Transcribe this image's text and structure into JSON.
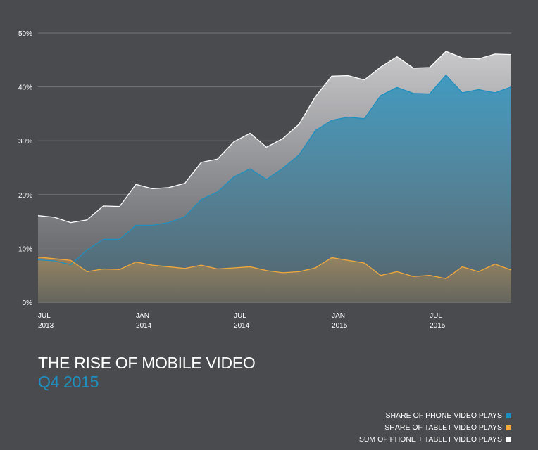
{
  "chart_data": {
    "type": "area",
    "title": "THE RISE OF MOBILE VIDEO",
    "subtitle": "Q4 2015",
    "ylim": [
      0,
      50
    ],
    "y_ticks": [
      "0%",
      "10%",
      "20%",
      "30%",
      "40%",
      "50%"
    ],
    "y_tick_values": [
      0,
      10,
      20,
      30,
      40,
      50
    ],
    "x_ticks": [
      {
        "month": "JUL",
        "year": "2013",
        "index": 0
      },
      {
        "month": "JAN",
        "year": "2014",
        "index": 6
      },
      {
        "month": "JUL",
        "year": "2014",
        "index": 12
      },
      {
        "month": "JAN",
        "year": "2015",
        "index": 18
      },
      {
        "month": "JUL",
        "year": "2015",
        "index": 24
      }
    ],
    "grid": true,
    "legend_placement": "bottom-right",
    "series": [
      {
        "name": "SUM OF PHONE + TABLET VIDEO PLAYS",
        "color": "#ffffff",
        "values": [
          16.1,
          15.8,
          14.8,
          15.3,
          17.9,
          17.8,
          21.9,
          21.1,
          21.3,
          22.1,
          26.0,
          26.6,
          29.8,
          31.4,
          28.8,
          30.4,
          33.1,
          38.2,
          42.0,
          42.1,
          41.3,
          43.7,
          45.6,
          43.5,
          43.6,
          46.6,
          45.4,
          45.2,
          46.1,
          46.0
        ]
      },
      {
        "name": "SHARE OF PHONE VIDEO PLAYS",
        "color": "#1e8fbf",
        "values": [
          7.9,
          7.7,
          7.0,
          9.7,
          11.7,
          11.7,
          14.3,
          14.3,
          14.8,
          15.9,
          19.1,
          20.5,
          23.3,
          24.8,
          22.8,
          24.9,
          27.4,
          31.9,
          33.8,
          34.4,
          34.1,
          38.4,
          39.9,
          38.8,
          38.7,
          42.2,
          38.9,
          39.5,
          38.9,
          40.0
        ]
      },
      {
        "name": "SHARE OF TABLET VIDEO PLAYS",
        "color": "#f2a93b",
        "values": [
          8.4,
          8.1,
          7.8,
          5.7,
          6.2,
          6.1,
          7.5,
          6.9,
          6.6,
          6.3,
          6.9,
          6.2,
          6.4,
          6.6,
          5.9,
          5.5,
          5.7,
          6.4,
          8.3,
          7.8,
          7.3,
          5.0,
          5.7,
          4.8,
          5.0,
          4.4,
          6.6,
          5.7,
          7.1,
          6.0
        ]
      }
    ]
  },
  "legend": [
    {
      "label": "SHARE OF PHONE VIDEO PLAYS",
      "color": "#1e8fbf"
    },
    {
      "label": "SHARE OF TABLET VIDEO PLAYS",
      "color": "#f2a93b"
    },
    {
      "label": "SUM OF PHONE + TABLET VIDEO PLAYS",
      "color": "#ffffff"
    }
  ]
}
